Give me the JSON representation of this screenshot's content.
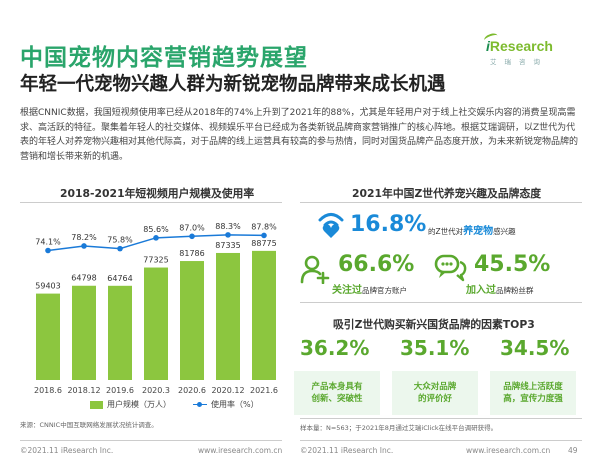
{
  "header": {
    "title": "中国宠物内容营销趋势展望",
    "subtitle": "年轻一代宠物兴趣人群为新锐宠物品牌带来成长机遇",
    "logo_brand_i": "i",
    "logo_brand_rest": "Research",
    "logo_cn": "艾瑞咨询"
  },
  "intro": "根据CNNIC数据，我国短视频使用率已经从2018年的74%上升到了2021年的88%，尤其是年轻用户对于线上社交娱乐内容的消费呈现高需求、高活跃的特征。聚集着年轻人的社交媒体、视频娱乐平台已经成为各类新锐品牌商家营销推广的核心阵地。根据艾瑞调研，以Z世代为代表的年轻人对养宠物兴趣相对其他代际高，对于品牌的线上运营具有较高的参与热情，同时对国货品牌产品态度开放，为未来新锐宠物品牌的营销和增长带来新的机遇。",
  "left_panel": {
    "title": "2018-2021年短视频用户规模及使用率",
    "legend_bar": "用户规模（万人）",
    "legend_line": "使用率（%）",
    "source": "来源：CNNIC中国互联网络发展状况统计调查。"
  },
  "chart_data": {
    "type": "bar",
    "categories": [
      "2018.6",
      "2018.12",
      "2019.6",
      "2020.3",
      "2020.6",
      "2020.12",
      "2021.6"
    ],
    "series": [
      {
        "name": "用户规模（万人）",
        "type": "bar",
        "values": [
          59403,
          64798,
          64764,
          77325,
          81786,
          87335,
          88775
        ],
        "color": "#8cc63f"
      },
      {
        "name": "使用率（%）",
        "type": "line",
        "values": [
          74.1,
          78.2,
          75.8,
          85.6,
          87.0,
          88.3,
          87.8
        ],
        "labels": [
          "74.1%",
          "78.2%",
          "75.8%",
          "85.6%",
          "87.0%",
          "88.3%",
          "87.8%"
        ],
        "color": "#1a7ad8"
      }
    ],
    "bar_ylim": [
      0,
      110000
    ],
    "line_ylim": [
      0,
      100
    ]
  },
  "right_panel": {
    "title": "2021年中国Z世代养宠兴趣及品牌态度",
    "stat1": {
      "value": "16.8%",
      "pre": "的Z世代对",
      "hl": "养宠物",
      "post": "感兴趣"
    },
    "stat2": {
      "value": "66.6%",
      "hl": "关注过",
      "post": "品牌官方账户"
    },
    "stat3": {
      "value": "45.5%",
      "hl": "加入过",
      "post": "品牌粉丝群"
    },
    "top3_title": "吸引Z世代购买新兴国货品牌的因素TOP3",
    "top3": [
      {
        "value": "36.2%",
        "line1": "产品本身具有",
        "line2": "创新、突破性"
      },
      {
        "value": "35.1%",
        "line1": "大众对品牌",
        "line2": "的评价好"
      },
      {
        "value": "34.5%",
        "line1": "品牌线上活跃度",
        "line2": "高，宣传力度强"
      }
    ],
    "source": "样本量：N=563；于2021年8月通过艾瑞iClick在线平台调研获得。"
  },
  "footer": {
    "copyright_left": "©2021.11 iResearch Inc.",
    "url_left": "www.iresearch.com.cn",
    "copyright_right": "©2021.11 iResearch Inc.",
    "url_right": "www.iresearch.com.cn",
    "page": "49"
  },
  "colors": {
    "title_green": "#2aa56b",
    "bar_green": "#8cc63f",
    "line_blue": "#1a7ad8",
    "stat_blue": "#1a8ad8",
    "stat_green": "#5aa82e",
    "box_bg": "#ecf7ed"
  }
}
